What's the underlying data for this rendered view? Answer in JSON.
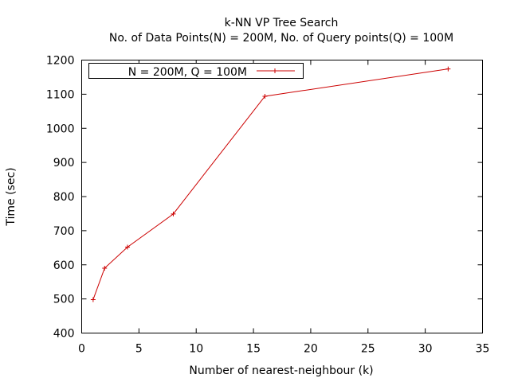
{
  "chart_data": {
    "type": "line",
    "title": "k-NN VP Tree Search",
    "subtitle": "No. of Data Points(N) = 200M,  No. of Query points(Q) = 100M",
    "xlabel": "Number of nearest-neighbour (k)",
    "ylabel": "Time (sec)",
    "xlim": [
      0,
      35
    ],
    "ylim": [
      400,
      1200
    ],
    "xticks": [
      0,
      5,
      10,
      15,
      20,
      25,
      30,
      35
    ],
    "yticks": [
      400,
      500,
      600,
      700,
      800,
      900,
      1000,
      1100,
      1200
    ],
    "grid": false,
    "legend_position": "top-left",
    "series": [
      {
        "name": "N = 200M, Q = 100M",
        "color": "#cc0000",
        "marker": "plus",
        "x": [
          1,
          2,
          4,
          8,
          16,
          32
        ],
        "y": [
          498,
          590,
          652,
          749,
          1094,
          1174
        ]
      }
    ]
  }
}
